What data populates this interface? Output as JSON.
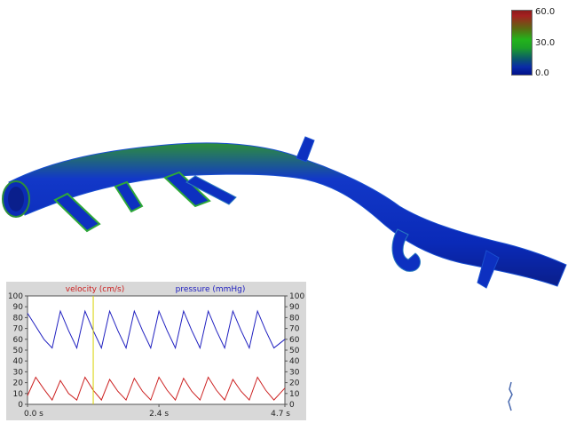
{
  "colorbar": {
    "max_label": "60.0",
    "mid_label": "30.0",
    "min_label": "0.0"
  },
  "chart_data": {
    "type": "line",
    "series": [
      {
        "name": "velocity (cm/s)",
        "color": "#cc2020",
        "x": [
          0.0,
          0.15,
          0.3,
          0.45,
          0.6,
          0.75,
          0.9,
          1.05,
          1.2,
          1.35,
          1.5,
          1.65,
          1.8,
          1.95,
          2.1,
          2.25,
          2.4,
          2.55,
          2.7,
          2.85,
          3.0,
          3.15,
          3.3,
          3.45,
          3.6,
          3.75,
          3.9,
          4.05,
          4.2,
          4.35,
          4.5,
          4.7
        ],
        "values": [
          8,
          25,
          14,
          4,
          22,
          10,
          4,
          25,
          13,
          4,
          23,
          12,
          4,
          24,
          12,
          4,
          25,
          13,
          4,
          24,
          12,
          4,
          25,
          13,
          4,
          23,
          12,
          4,
          25,
          13,
          4,
          15
        ]
      },
      {
        "name": "pressure (mmHg)",
        "color": "#2020c0",
        "x": [
          0.0,
          0.15,
          0.3,
          0.45,
          0.6,
          0.75,
          0.9,
          1.05,
          1.2,
          1.35,
          1.5,
          1.65,
          1.8,
          1.95,
          2.1,
          2.25,
          2.4,
          2.55,
          2.7,
          2.85,
          3.0,
          3.15,
          3.3,
          3.45,
          3.6,
          3.75,
          3.9,
          4.05,
          4.2,
          4.35,
          4.5,
          4.7
        ],
        "values": [
          84,
          72,
          60,
          52,
          86,
          68,
          52,
          86,
          68,
          52,
          86,
          68,
          52,
          86,
          68,
          52,
          86,
          68,
          52,
          86,
          68,
          52,
          86,
          68,
          52,
          86,
          68,
          52,
          86,
          68,
          52,
          60
        ]
      }
    ],
    "xtick_labels": [
      "0.0 s",
      "2.4 s",
      "4.7 s"
    ],
    "xtick_values": [
      0.0,
      2.4,
      4.7
    ],
    "ytick_labels": [
      "0",
      "10",
      "20",
      "30",
      "40",
      "50",
      "60",
      "70",
      "80",
      "90",
      "100"
    ],
    "xlim": [
      0.0,
      4.7
    ],
    "ylim": [
      0,
      100
    ],
    "cursor_x": 1.2,
    "cursor_color": "#d8d000",
    "grid": false
  }
}
